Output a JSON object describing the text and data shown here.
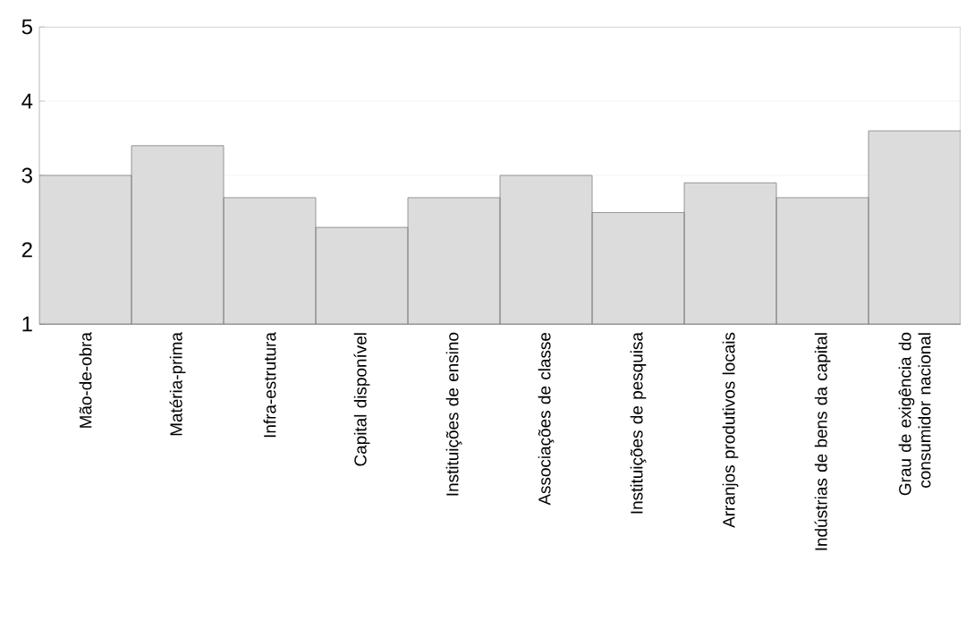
{
  "chart_data": {
    "type": "bar",
    "categories": [
      "Mão-de-obra",
      "Matéria-prima",
      "Infra-estrutura",
      "Capital disponível",
      "Instituições de ensino",
      "Associações de classe",
      "Instituições de pesquisa",
      "Arranjos produtivos locais",
      "Indústrias de bens da capital",
      "Grau de exigência do consumidor nacional"
    ],
    "values": [
      3.0,
      3.4,
      2.7,
      2.3,
      2.7,
      3.0,
      2.5,
      2.9,
      2.7,
      3.6
    ],
    "color": "#dcdcdc",
    "ylim": [
      1,
      5
    ],
    "yticks": [
      1,
      2,
      3,
      4,
      5
    ],
    "grid": "y"
  }
}
